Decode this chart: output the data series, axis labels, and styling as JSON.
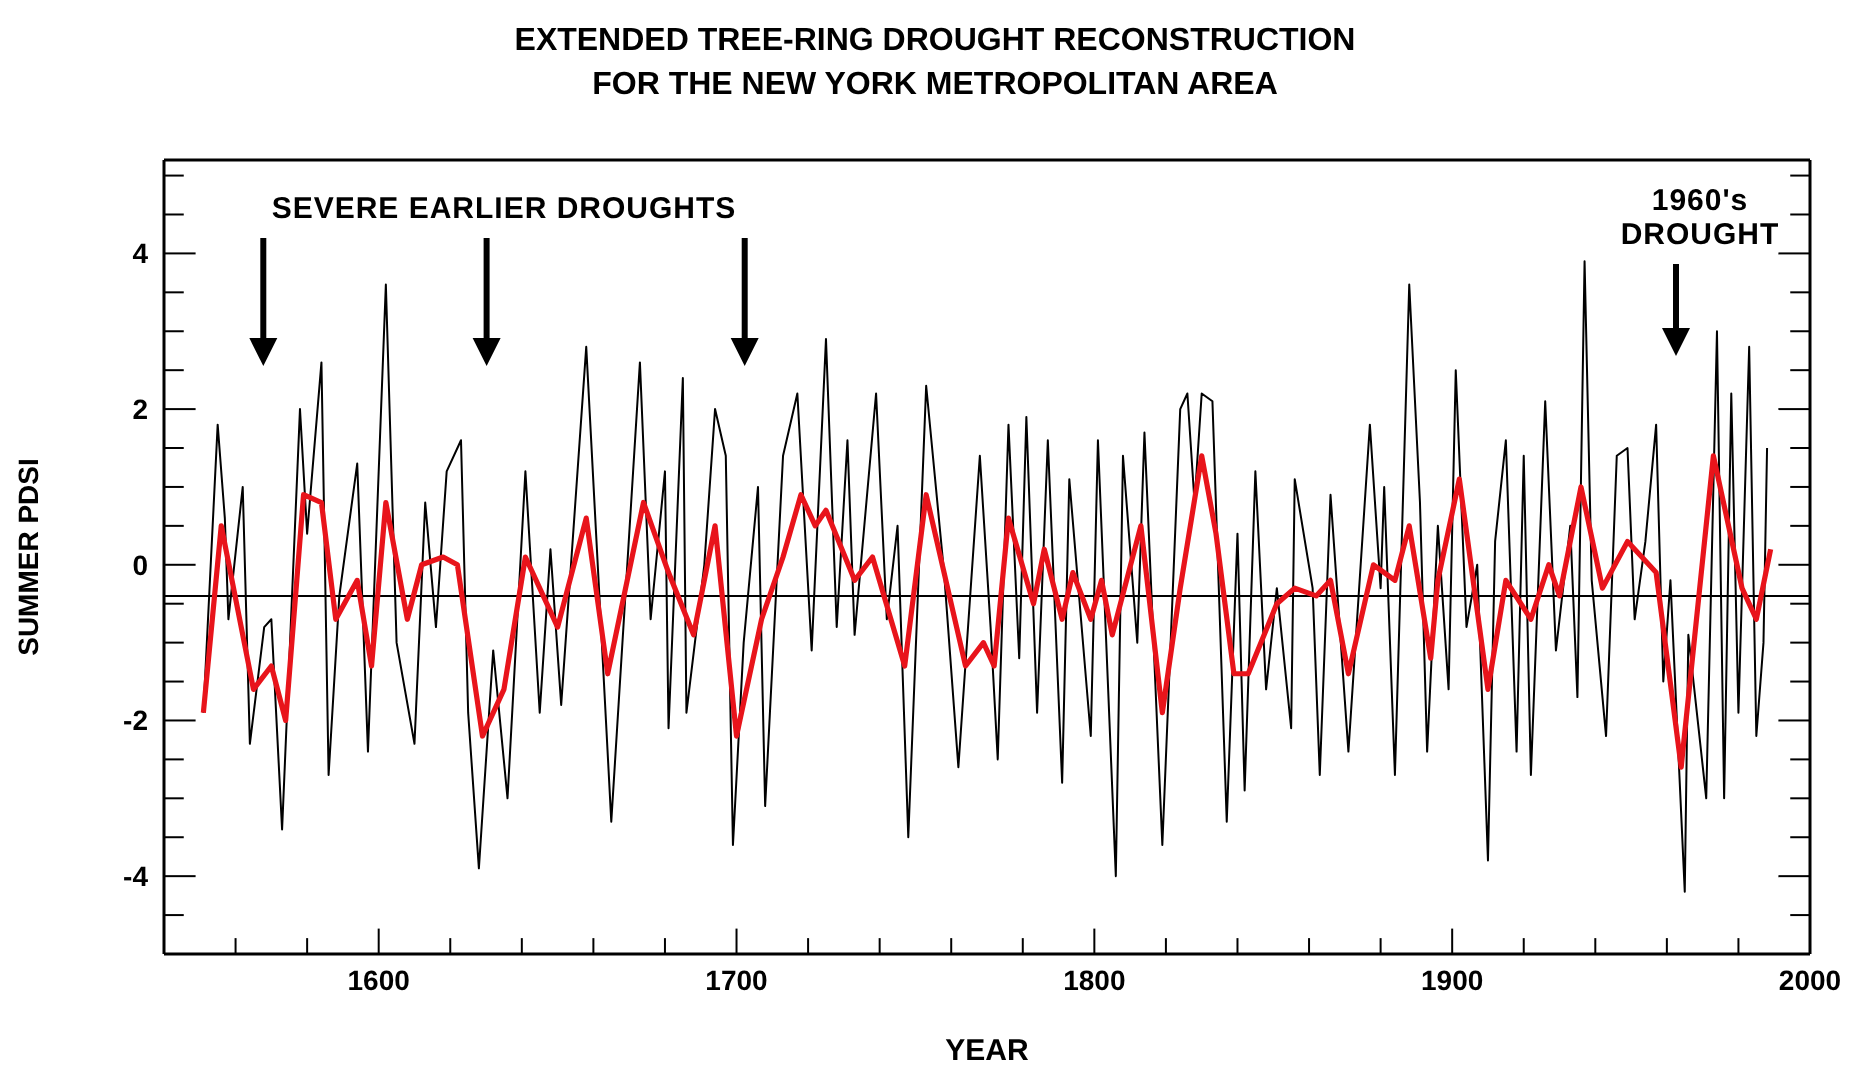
{
  "chart_data": {
    "type": "line",
    "title": "EXTENDED TREE-RING DROUGHT RECONSTRUCTION",
    "subtitle": "FOR THE NEW YORK METROPOLITAN AREA",
    "xlabel": "YEAR",
    "ylabel": "SUMMER PDSI",
    "annotations": [
      "SEVERE EARLIER DROUGHTS",
      "1960's DROUGHT"
    ],
    "xlim": [
      1540,
      2000
    ],
    "ylim": [
      -5,
      5.2
    ],
    "xticks": [
      {
        "value": 1560,
        "label": null
      },
      {
        "value": 1580,
        "label": null
      },
      1600,
      {
        "value": 1620,
        "label": null
      },
      {
        "value": 1640,
        "label": null
      },
      {
        "value": 1660,
        "label": null
      },
      {
        "value": 1680,
        "label": null
      },
      1700,
      {
        "value": 1720,
        "label": null
      },
      {
        "value": 1740,
        "label": null
      },
      {
        "value": 1760,
        "label": null
      },
      {
        "value": 1780,
        "label": null
      },
      1800,
      {
        "value": 1820,
        "label": null
      },
      {
        "value": 1840,
        "label": null
      },
      {
        "value": 1860,
        "label": null
      },
      {
        "value": 1880,
        "label": null
      },
      1900,
      {
        "value": 1920,
        "label": null
      },
      {
        "value": 1940,
        "label": null
      },
      {
        "value": 1960,
        "label": null
      },
      {
        "value": 1980,
        "label": null
      },
      2000
    ],
    "yticks": [
      {
        "value": -4.5,
        "label": null
      },
      -4,
      {
        "value": -3.5,
        "label": null
      },
      {
        "value": -3,
        "label": null
      },
      {
        "value": -2.5,
        "label": null
      },
      -2,
      {
        "value": -1.5,
        "label": null
      },
      {
        "value": -1,
        "label": null
      },
      {
        "value": -0.5,
        "label": null
      },
      0,
      {
        "value": 0.5,
        "label": null
      },
      {
        "value": 1,
        "label": null
      },
      {
        "value": 1.5,
        "label": null
      },
      2,
      {
        "value": 2.5,
        "label": null
      },
      {
        "value": 3,
        "label": null
      },
      {
        "value": 3.5,
        "label": null
      },
      4,
      {
        "value": 4.5,
        "label": null
      },
      {
        "value": 5,
        "label": null
      }
    ],
    "ref_lines": [
      {
        "axis": "y",
        "value": -0.4,
        "color": "#000000"
      }
    ],
    "marker": "none",
    "line_style": "solid",
    "series": [
      {
        "color": "#000000",
        "x": [
          1551,
          1555,
          1557,
          1558,
          1562,
          1564,
          1568,
          1570,
          1573,
          1578,
          1580,
          1584,
          1586,
          1589,
          1594,
          1597,
          1602,
          1605,
          1610,
          1613,
          1616,
          1619,
          1623,
          1625,
          1628,
          1632,
          1636,
          1641,
          1645,
          1648,
          1651,
          1658,
          1665,
          1673,
          1676,
          1680,
          1681,
          1685,
          1686,
          1691,
          1694,
          1697,
          1699,
          1702,
          1706,
          1708,
          1713,
          1717,
          1721,
          1725,
          1728,
          1731,
          1733,
          1739,
          1742,
          1745,
          1748,
          1753,
          1758,
          1762,
          1768,
          1771,
          1773,
          1776,
          1779,
          1781,
          1784,
          1787,
          1791,
          1793,
          1799,
          1801,
          1806,
          1808,
          1812,
          1814,
          1819,
          1824,
          1826,
          1828,
          1830,
          1833,
          1837,
          1840,
          1842,
          1845,
          1848,
          1851,
          1855,
          1856,
          1861,
          1863,
          1866,
          1871,
          1877,
          1880,
          1881,
          1884,
          1888,
          1891,
          1893,
          1896,
          1899,
          1901,
          1904,
          1907,
          1910,
          1912,
          1915,
          1918,
          1920,
          1922,
          1926,
          1929,
          1933,
          1935,
          1937,
          1939,
          1943,
          1946,
          1949,
          1951,
          1954,
          1957,
          1959,
          1961,
          1965,
          1966,
          1971,
          1974,
          1976,
          1978,
          1980,
          1983,
          1985,
          1987,
          1988
        ],
        "values": [
          -1.9,
          1.8,
          0.6,
          -0.7,
          1.0,
          -2.3,
          -0.8,
          -0.7,
          -3.4,
          2.0,
          0.4,
          2.6,
          -2.7,
          -0.4,
          1.3,
          -2.4,
          3.6,
          -1.0,
          -2.3,
          0.8,
          -0.8,
          1.2,
          1.6,
          -1.9,
          -3.9,
          -1.1,
          -3.0,
          1.2,
          -1.9,
          0.2,
          -1.8,
          2.8,
          -3.3,
          2.6,
          -0.7,
          1.2,
          -2.1,
          2.4,
          -1.9,
          0.0,
          2.0,
          1.4,
          -3.6,
          -1.0,
          1.0,
          -3.1,
          1.4,
          2.2,
          -1.1,
          2.9,
          -0.8,
          1.6,
          -0.9,
          2.2,
          -0.7,
          0.5,
          -3.5,
          2.3,
          -0.1,
          -2.6,
          1.4,
          -0.8,
          -2.5,
          1.8,
          -1.2,
          1.9,
          -1.9,
          1.6,
          -2.8,
          1.1,
          -2.2,
          1.6,
          -4.0,
          1.4,
          -1.0,
          1.7,
          -3.6,
          2.0,
          2.2,
          0.8,
          2.2,
          2.1,
          -3.3,
          0.4,
          -2.9,
          1.2,
          -1.6,
          -0.3,
          -2.1,
          1.1,
          -0.3,
          -2.7,
          0.9,
          -2.4,
          1.8,
          -0.3,
          1.0,
          -2.7,
          3.6,
          0.8,
          -2.4,
          0.5,
          -1.6,
          2.5,
          -0.8,
          0.0,
          -3.8,
          0.3,
          1.6,
          -2.4,
          1.4,
          -2.7,
          2.1,
          -1.1,
          0.5,
          -1.7,
          3.9,
          -0.2,
          -2.2,
          1.4,
          1.5,
          -0.7,
          0.3,
          1.8,
          -1.5,
          -0.2,
          -4.2,
          -0.9,
          -3.0,
          3.0,
          -3.0,
          2.2,
          -1.9,
          2.8,
          -2.2,
          -1.0,
          1.5
        ]
      },
      {
        "color": "#e8141b",
        "x": [
          1551,
          1556,
          1559,
          1565,
          1570,
          1574,
          1579,
          1584,
          1588,
          1594,
          1598,
          1602,
          1608,
          1612,
          1618,
          1622,
          1629,
          1635,
          1641,
          1650,
          1658,
          1664,
          1674,
          1681,
          1688,
          1694,
          1700,
          1707,
          1713,
          1718,
          1722,
          1725,
          1733,
          1738,
          1747,
          1753,
          1764,
          1769,
          1772,
          1776,
          1783,
          1786,
          1791,
          1794,
          1799,
          1802,
          1805,
          1813,
          1819,
          1824,
          1830,
          1834,
          1839,
          1843,
          1851,
          1856,
          1862,
          1866,
          1871,
          1878,
          1884,
          1888,
          1894,
          1896,
          1902,
          1910,
          1915,
          1922,
          1927,
          1930,
          1936,
          1942,
          1949,
          1957,
          1964,
          1973,
          1981,
          1985,
          1989
        ],
        "values": [
          -1.9,
          0.5,
          -0.2,
          -1.6,
          -1.3,
          -2.0,
          0.9,
          0.8,
          -0.7,
          -0.2,
          -1.3,
          0.8,
          -0.7,
          0.0,
          0.1,
          0.0,
          -2.2,
          -1.6,
          0.1,
          -0.8,
          0.6,
          -1.4,
          0.8,
          -0.1,
          -0.9,
          0.5,
          -2.2,
          -0.7,
          0.1,
          0.9,
          0.5,
          0.7,
          -0.2,
          0.1,
          -1.3,
          0.9,
          -1.3,
          -1.0,
          -1.3,
          0.6,
          -0.5,
          0.2,
          -0.7,
          -0.1,
          -0.7,
          -0.2,
          -0.9,
          0.5,
          -1.9,
          -0.3,
          1.4,
          0.4,
          -1.4,
          -1.4,
          -0.5,
          -0.3,
          -0.4,
          -0.2,
          -1.4,
          0.0,
          -0.2,
          0.5,
          -1.2,
          -0.2,
          1.1,
          -1.6,
          -0.2,
          -0.7,
          0.0,
          -0.4,
          1.0,
          -0.3,
          0.3,
          -0.1,
          -2.6,
          1.4,
          -0.3,
          -0.7,
          0.2
        ]
      }
    ]
  }
}
